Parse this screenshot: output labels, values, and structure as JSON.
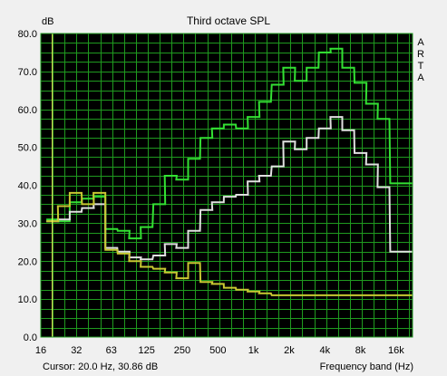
{
  "chart_data": {
    "type": "line",
    "title": "Third octave SPL",
    "ylabel": "dB",
    "xlabel": "Frequency band (Hz)",
    "watermark": [
      "A",
      "R",
      "T",
      "A"
    ],
    "cursor_text": "Cursor:   20.0 Hz, 30.86 dB",
    "cursor_x_hz": 20.0,
    "ylim": [
      0,
      80
    ],
    "yticks": [
      "0.0",
      "10.0",
      "20.0",
      "30.0",
      "40.0",
      "50.0",
      "60.0",
      "70.0",
      "80.0"
    ],
    "x_scale": "log",
    "xlim_hz": [
      16,
      22000
    ],
    "xtick_labels": [
      "16",
      "32",
      "63",
      "125",
      "250",
      "500",
      "1k",
      "2k",
      "4k",
      "8k",
      "16k"
    ],
    "xtick_values_hz": [
      16,
      32,
      63,
      125,
      250,
      500,
      1000,
      2000,
      4000,
      8000,
      16000
    ],
    "grid": true,
    "colors": {
      "plot_bg": "#000000",
      "grid": "#1f9a1f",
      "series_green": "#33e033",
      "series_white": "#e0e0e0",
      "series_yellow": "#c8c832",
      "cursor": "#ffff66"
    },
    "bands_hz": [
      20,
      25,
      31.5,
      40,
      50,
      63,
      80,
      100,
      125,
      160,
      200,
      250,
      315,
      400,
      500,
      630,
      800,
      1000,
      1250,
      1600,
      2000,
      2500,
      3150,
      4000,
      5000,
      6300,
      8000,
      10000,
      12500,
      16000,
      20000
    ],
    "series": [
      {
        "color": "#33e033",
        "values": [
          31.0,
          30.5,
          35.5,
          36.5,
          37.0,
          28.5,
          28.0,
          26.0,
          29.0,
          35.0,
          42.5,
          41.5,
          47.0,
          52.5,
          55.0,
          56.0,
          55.0,
          58.0,
          62.0,
          66.5,
          71.0,
          67.5,
          71.0,
          75.0,
          76.0,
          71.0,
          67.0,
          61.5,
          57.5,
          40.5,
          40.5
        ]
      },
      {
        "color": "#e0e0e0",
        "values": [
          30.5,
          31.0,
          33.0,
          34.0,
          35.0,
          23.5,
          22.5,
          21.0,
          20.5,
          21.5,
          24.5,
          23.5,
          28.0,
          33.5,
          35.5,
          37.0,
          37.5,
          41.0,
          42.5,
          45.0,
          51.5,
          49.5,
          52.5,
          55.0,
          58.0,
          54.5,
          48.5,
          45.5,
          39.5,
          22.5,
          22.5
        ]
      },
      {
        "color": "#c8c832",
        "values": [
          30.5,
          34.5,
          38.0,
          35.0,
          38.0,
          23.0,
          22.0,
          20.0,
          18.5,
          18.0,
          17.0,
          15.5,
          19.5,
          14.5,
          14.0,
          13.0,
          12.5,
          12.0,
          11.5,
          11.0,
          11.0,
          11.0,
          11.0,
          11.0,
          11.0,
          11.0,
          11.0,
          11.0,
          11.0,
          11.0,
          11.0
        ]
      }
    ]
  }
}
